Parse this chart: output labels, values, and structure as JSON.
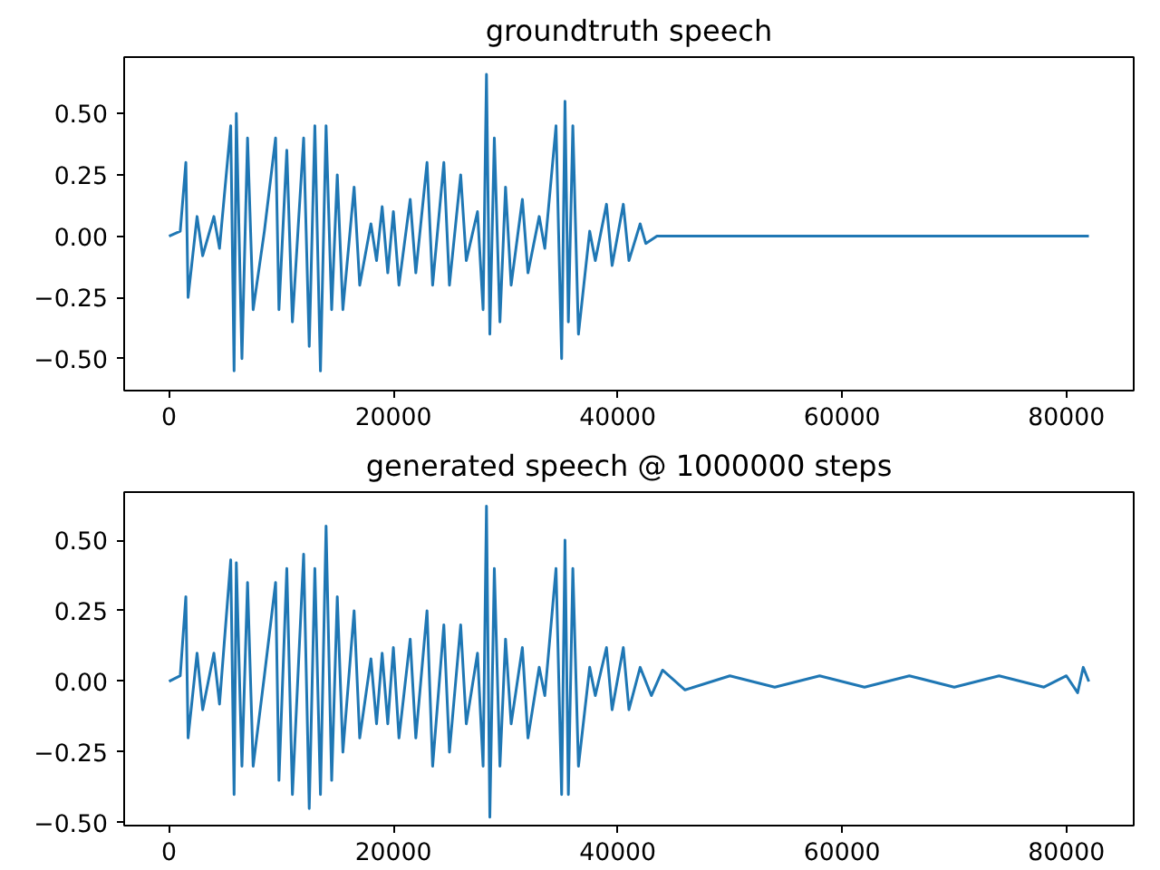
{
  "chart_data": [
    {
      "type": "line",
      "title": "groundtruth speech",
      "grid": false,
      "series": [
        {
          "color": "#1f77b4",
          "x": [
            0,
            1000,
            1500,
            1700,
            2500,
            3000,
            4000,
            4500,
            5500,
            5800,
            6000,
            6500,
            7000,
            7500,
            8500,
            9500,
            9800,
            10500,
            11000,
            12000,
            12500,
            13000,
            13500,
            14000,
            14500,
            15000,
            15500,
            16500,
            17000,
            18000,
            18500,
            19000,
            19500,
            20000,
            20500,
            21500,
            22000,
            23000,
            23500,
            24500,
            25000,
            26000,
            26500,
            27500,
            28000,
            28300,
            28600,
            29000,
            29500,
            30000,
            30500,
            31500,
            32000,
            33000,
            33500,
            34500,
            35000,
            35300,
            35600,
            36000,
            36500,
            37500,
            38000,
            39000,
            39500,
            40500,
            41000,
            42000,
            42500,
            43500,
            82000
          ],
          "values": [
            0,
            0.02,
            0.3,
            -0.25,
            0.08,
            -0.08,
            0.08,
            -0.05,
            0.45,
            -0.55,
            0.5,
            -0.5,
            0.4,
            -0.3,
            0.02,
            0.4,
            -0.3,
            0.35,
            -0.35,
            0.4,
            -0.45,
            0.45,
            -0.55,
            0.45,
            -0.3,
            0.25,
            -0.3,
            0.2,
            -0.2,
            0.05,
            -0.1,
            0.12,
            -0.15,
            0.1,
            -0.2,
            0.15,
            -0.15,
            0.3,
            -0.2,
            0.3,
            -0.2,
            0.25,
            -0.1,
            0.1,
            -0.3,
            0.66,
            -0.4,
            0.4,
            -0.35,
            0.2,
            -0.2,
            0.15,
            -0.15,
            0.08,
            -0.05,
            0.45,
            -0.5,
            0.55,
            -0.35,
            0.45,
            -0.4,
            0.02,
            -0.1,
            0.13,
            -0.12,
            0.13,
            -0.1,
            0.05,
            -0.03,
            0,
            0
          ]
        }
      ],
      "xlim": [
        -4000,
        86000
      ],
      "xticks": [
        0,
        20000,
        40000,
        60000,
        80000
      ],
      "ylim": [
        -0.63,
        0.73
      ],
      "yticks": [
        {
          "value": -0.5,
          "label": "−0.50"
        },
        {
          "value": -0.25,
          "label": "−0.25"
        },
        {
          "value": 0,
          "label": "0.00"
        },
        {
          "value": 0.25,
          "label": "0.25"
        },
        {
          "value": 0.5,
          "label": "0.50"
        }
      ]
    },
    {
      "type": "line",
      "title": "generated speech @ 1000000 steps",
      "grid": false,
      "series": [
        {
          "color": "#1f77b4",
          "x": [
            0,
            1000,
            1500,
            1700,
            2500,
            3000,
            4000,
            4500,
            5500,
            5800,
            6000,
            6500,
            7000,
            7500,
            8500,
            9500,
            9800,
            10500,
            11000,
            12000,
            12500,
            13000,
            13500,
            14000,
            14500,
            15000,
            15500,
            16500,
            17000,
            18000,
            18500,
            19000,
            19500,
            20000,
            20500,
            21500,
            22000,
            23000,
            23500,
            24500,
            25000,
            26000,
            26500,
            27500,
            28000,
            28300,
            28600,
            29000,
            29500,
            30000,
            30500,
            31500,
            32000,
            33000,
            33500,
            34500,
            35000,
            35300,
            35600,
            36000,
            36500,
            37500,
            38000,
            39000,
            39500,
            40500,
            41000,
            42000,
            43000,
            44000,
            46000,
            50000,
            54000,
            58000,
            62000,
            66000,
            70000,
            74000,
            78000,
            80000,
            81000,
            81500,
            82000
          ],
          "values": [
            0,
            0.02,
            0.3,
            -0.2,
            0.1,
            -0.1,
            0.1,
            -0.08,
            0.43,
            -0.4,
            0.42,
            -0.3,
            0.35,
            -0.3,
            0.02,
            0.35,
            -0.35,
            0.4,
            -0.4,
            0.45,
            -0.45,
            0.4,
            -0.4,
            0.55,
            -0.35,
            0.3,
            -0.25,
            0.25,
            -0.2,
            0.08,
            -0.15,
            0.1,
            -0.15,
            0.12,
            -0.2,
            0.15,
            -0.2,
            0.25,
            -0.3,
            0.2,
            -0.25,
            0.2,
            -0.15,
            0.1,
            -0.3,
            0.62,
            -0.48,
            0.4,
            -0.3,
            0.15,
            -0.15,
            0.12,
            -0.2,
            0.05,
            -0.05,
            0.4,
            -0.4,
            0.5,
            -0.4,
            0.4,
            -0.3,
            0.05,
            -0.05,
            0.12,
            -0.1,
            0.12,
            -0.1,
            0.05,
            -0.05,
            0.04,
            -0.03,
            0.02,
            -0.02,
            0.02,
            -0.02,
            0.02,
            -0.02,
            0.02,
            -0.02,
            0.02,
            -0.04,
            0.05,
            0
          ]
        }
      ],
      "xlim": [
        -4000,
        86000
      ],
      "xticks": [
        0,
        20000,
        40000,
        60000,
        80000
      ],
      "ylim": [
        -0.51,
        0.67
      ],
      "yticks": [
        {
          "value": -0.5,
          "label": "−0.50"
        },
        {
          "value": -0.25,
          "label": "−0.25"
        },
        {
          "value": 0,
          "label": "0.00"
        },
        {
          "value": 0.25,
          "label": "0.25"
        },
        {
          "value": 0.5,
          "label": "0.50"
        }
      ]
    }
  ]
}
